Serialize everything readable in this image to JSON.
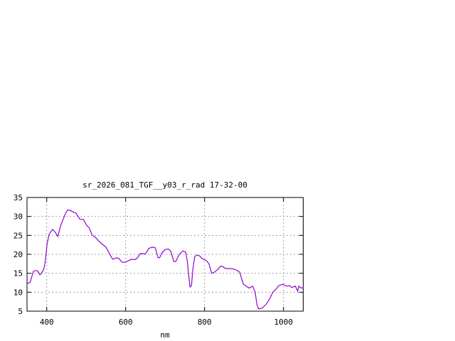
{
  "chart_data": {
    "type": "line",
    "title": "sr_2026_081_TGF__y03_r_rad 17-32-00",
    "xlabel": "nm",
    "ylabel": "",
    "xlim": [
      350,
      1050
    ],
    "ylim": [
      5,
      35
    ],
    "xticks": [
      400,
      600,
      800,
      1000
    ],
    "yticks": [
      5,
      10,
      15,
      20,
      25,
      30,
      35
    ],
    "grid": true,
    "line_color": "#9400d3",
    "series": [
      {
        "x": [
          350,
          358,
          366,
          371,
          377,
          383,
          392,
          396,
          401,
          406,
          415,
          423,
          428,
          436,
          448,
          453,
          459,
          468,
          474,
          484,
          493,
          501,
          508,
          515,
          524,
          536,
          550,
          559,
          567,
          577,
          583,
          591,
          598,
          606,
          615,
          624,
          630,
          637,
          650,
          659,
          668,
          675,
          682,
          686,
          692,
          700,
          708,
          714,
          722,
          727,
          736,
          745,
          752,
          756,
          763,
          767,
          770,
          775,
          780,
          787,
          796,
          804,
          811,
          818,
          824,
          832,
          841,
          847,
          853,
          862,
          871,
          880,
          889,
          898,
          904,
          913,
          922,
          928,
          933,
          937,
          946,
          955,
          964,
          973,
          982,
          988,
          1000,
          1006,
          1015,
          1021,
          1030,
          1036,
          1039,
          1045,
          1050
        ],
        "y": [
          12.3,
          12.6,
          15.5,
          15.75,
          15.6,
          14.6,
          15.9,
          17.8,
          22.8,
          25.3,
          26.6,
          25.6,
          24.7,
          27.8,
          30.9,
          31.7,
          31.6,
          31.1,
          30.9,
          29.25,
          29.2,
          27.7,
          26.9,
          25.1,
          24.4,
          23.1,
          21.9,
          20.2,
          18.7,
          19.1,
          18.9,
          17.9,
          17.9,
          18.25,
          18.7,
          18.6,
          19.1,
          20.2,
          20.1,
          21.6,
          21.9,
          21.7,
          19.1,
          19.1,
          20.4,
          21.25,
          21.4,
          20.9,
          18.1,
          18.1,
          20,
          20.9,
          20.6,
          18.4,
          11.4,
          11.8,
          15.9,
          19.4,
          19.8,
          19.6,
          18.7,
          18.4,
          17.5,
          15,
          15.2,
          15.9,
          16.9,
          16.7,
          16.25,
          16.25,
          16.2,
          15.9,
          15.3,
          12.2,
          11.7,
          11.1,
          11.6,
          10,
          6.6,
          5.6,
          5.8,
          6.7,
          8.1,
          10,
          10.9,
          11.75,
          12.1,
          11.6,
          11.75,
          11.25,
          11.6,
          10.3,
          11.6,
          11.1,
          11.2
        ]
      }
    ]
  }
}
